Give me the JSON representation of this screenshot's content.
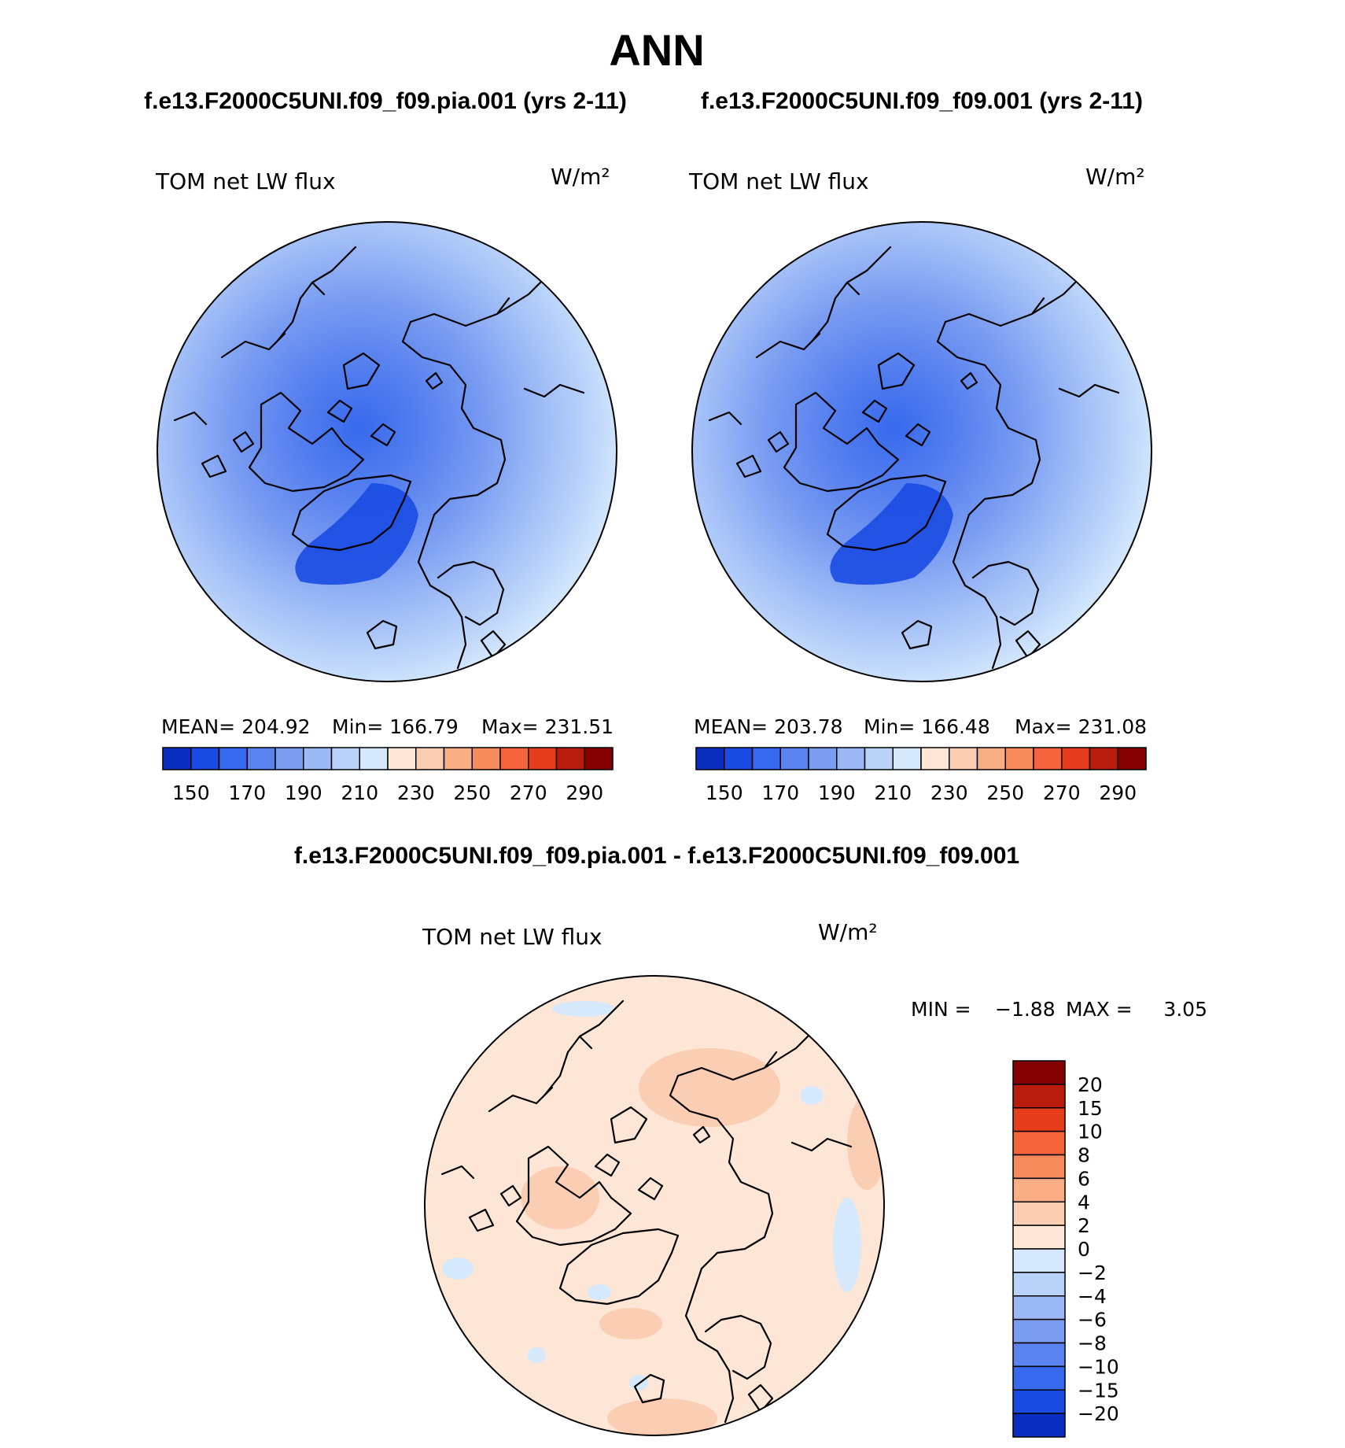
{
  "title": "ANN",
  "colors": {
    "pos_ramp": [
      "#fde6d6",
      "#fbcdb2",
      "#f9ae86",
      "#f78a5b",
      "#f5643a",
      "#e63d1c",
      "#b81c0c",
      "#850000"
    ],
    "neg_ramp": [
      "#d6e9fc",
      "#b9d2fa",
      "#9cb9f6",
      "#7a9df2",
      "#5a83ef",
      "#3769ee",
      "#1a4be2",
      "#0a2fc0",
      "#031a96",
      "#000a6e"
    ],
    "coastline": "#000000"
  },
  "chart_data": [
    {
      "type": "heatmap",
      "projection": "north polar stereographic",
      "panel_title": "f.e13.F2000C5UNI.f09_f09.pia.001 (yrs 2-11)",
      "left_label": "TOM net LW flux",
      "units": "W/m²",
      "stats": {
        "mean": 204.92,
        "min": 166.79,
        "max": 231.51
      },
      "stats_text": {
        "mean": "MEAN= 204.92",
        "min": "Min= 166.79",
        "max": "Max= 231.51"
      },
      "colorbar": {
        "orientation": "horizontal",
        "levels": [
          150,
          160,
          170,
          180,
          190,
          200,
          210,
          220,
          230,
          240,
          250,
          260,
          270,
          280,
          290
        ],
        "tick_labels": [
          "150",
          "170",
          "190",
          "210",
          "230",
          "250",
          "270",
          "290"
        ]
      }
    },
    {
      "type": "heatmap",
      "projection": "north polar stereographic",
      "panel_title": "f.e13.F2000C5UNI.f09_f09.001 (yrs 2-11)",
      "left_label": "TOM net LW flux",
      "units": "W/m²",
      "stats": {
        "mean": 203.78,
        "min": 166.48,
        "max": 231.08
      },
      "stats_text": {
        "mean": "MEAN= 203.78",
        "min": "Min= 166.48",
        "max": "Max= 231.08"
      },
      "colorbar": {
        "orientation": "horizontal",
        "levels": [
          150,
          160,
          170,
          180,
          190,
          200,
          210,
          220,
          230,
          240,
          250,
          260,
          270,
          280,
          290
        ],
        "tick_labels": [
          "150",
          "170",
          "190",
          "210",
          "230",
          "250",
          "270",
          "290"
        ]
      }
    },
    {
      "type": "heatmap",
      "projection": "north polar stereographic",
      "panel_title": "f.e13.F2000C5UNI.f09_f09.pia.001 - f.e13.F2000C5UNI.f09_f09.001",
      "left_label": "TOM net LW flux",
      "units": "W/m²",
      "stats": {
        "min": -1.88,
        "max": 3.05
      },
      "stats_text": {
        "min_label": "MIN =",
        "min_value": "−1.88",
        "max_label": "MAX =",
        "max_value": "3.05"
      },
      "colorbar": {
        "orientation": "vertical",
        "levels": [
          -20,
          -15,
          -10,
          -8,
          -6,
          -4,
          -2,
          0,
          2,
          4,
          6,
          8,
          10,
          15,
          20
        ],
        "tick_labels": [
          "20",
          "15",
          "10",
          "8",
          "6",
          "4",
          "2",
          "0",
          "−2",
          "−4",
          "−6",
          "−8",
          "−10",
          "−15",
          "−20"
        ]
      }
    }
  ]
}
